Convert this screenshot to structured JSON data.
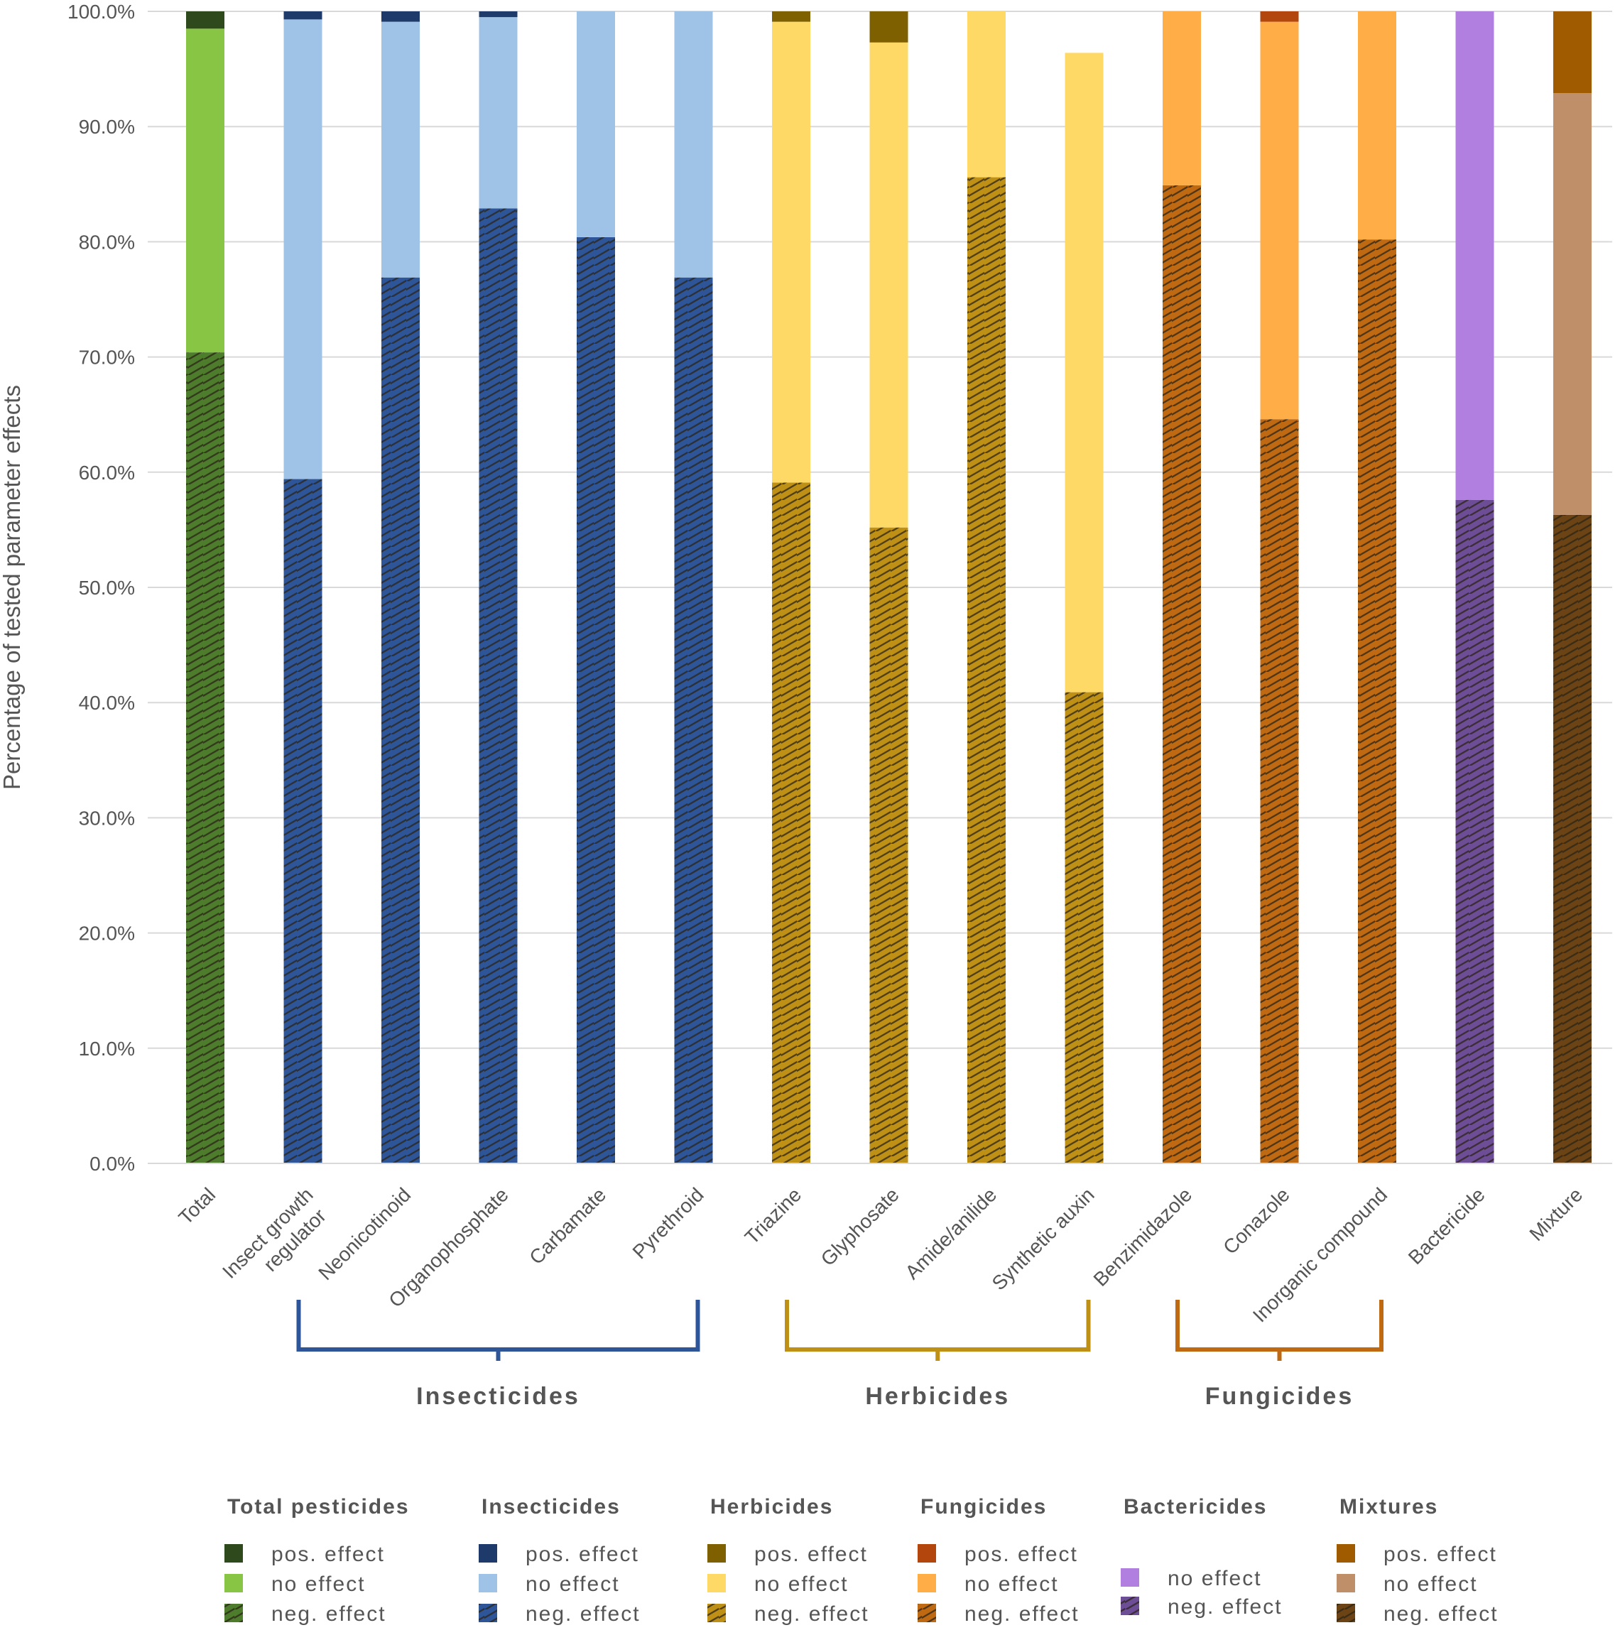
{
  "chart_data": {
    "type": "stacked-bar",
    "ylabel": "Percentage of tested parameter effects",
    "ylim": [
      0,
      100
    ],
    "yticks": [
      "0.0%",
      "10.0%",
      "20.0%",
      "30.0%",
      "40.0%",
      "50.0%",
      "60.0%",
      "70.0%",
      "80.0%",
      "90.0%",
      "100.0%"
    ],
    "grid": true,
    "stack_order": [
      "neg. effect",
      "no effect",
      "pos. effect"
    ],
    "bars": [
      {
        "category": "Total",
        "group": "total",
        "neg": 70.4,
        "no": 28.1,
        "pos": 1.5
      },
      {
        "category": "Insect growth regulator",
        "group": "insect",
        "neg": 59.4,
        "no": 39.9,
        "pos": 0.7
      },
      {
        "category": "Neonicotinoid",
        "group": "insect",
        "neg": 76.9,
        "no": 22.2,
        "pos": 0.9
      },
      {
        "category": "Organophosphate",
        "group": "insect",
        "neg": 82.9,
        "no": 16.6,
        "pos": 0.5
      },
      {
        "category": "Carbamate",
        "group": "insect",
        "neg": 80.4,
        "no": 19.6,
        "pos": 0
      },
      {
        "category": "Pyrethroid",
        "group": "insect",
        "neg": 76.9,
        "no": 23.1,
        "pos": 0
      },
      {
        "category": "Triazine",
        "group": "herb",
        "neg": 59.1,
        "no": 40.0,
        "pos": 0.9
      },
      {
        "category": "Glyphosate",
        "group": "herb",
        "neg": 55.2,
        "no": 42.1,
        "pos": 2.7
      },
      {
        "category": "Amide/anilide",
        "group": "herb",
        "neg": 85.6,
        "no": 14.4,
        "pos": 0
      },
      {
        "category": "Synthetic auxin",
        "group": "herb",
        "neg": 40.9,
        "no": 55.5,
        "pos": 0
      },
      {
        "category": "Benzimidazole",
        "group": "fung",
        "neg": 84.9,
        "no": 15.1,
        "pos": 0
      },
      {
        "category": "Conazole",
        "group": "fung",
        "neg": 64.6,
        "no": 34.5,
        "pos": 0.9
      },
      {
        "category": "Inorganic compound",
        "group": "fung",
        "neg": 80.2,
        "no": 19.8,
        "pos": 0
      },
      {
        "category": "Bactericide",
        "group": "bact",
        "neg": 57.6,
        "no": 42.4,
        "pos": 0
      },
      {
        "category": "Mixture",
        "group": "mix",
        "neg": 56.3,
        "no": 36.6,
        "pos": 7.1
      }
    ],
    "groups": [
      {
        "label": "Insecticides",
        "color": "#2e5597",
        "from": 1,
        "to": 5
      },
      {
        "label": "Herbicides",
        "color": "#bf9016",
        "from": 6,
        "to": 9
      },
      {
        "label": "Fungicides",
        "color": "#bf6a12",
        "from": 10,
        "to": 12
      }
    ],
    "colors": {
      "total": {
        "pos": "#2e4a1c",
        "no": "#88c545",
        "neg": "#4d7c2c"
      },
      "insect": {
        "pos": "#1e3a6b",
        "no": "#9fc3e6",
        "neg": "#2e5597"
      },
      "herb": {
        "pos": "#7f6000",
        "no": "#ffd966",
        "neg": "#bf9016"
      },
      "fung": {
        "pos": "#b2460c",
        "no": "#ffad47",
        "neg": "#bf6a12"
      },
      "bact": {
        "pos": "#5a3d86",
        "no": "#b07fe0",
        "neg": "#6e4d97"
      },
      "mix": {
        "pos": "#a05a00",
        "no": "#bf8f6a",
        "neg": "#6b4314"
      }
    },
    "legend": [
      {
        "title": "Total pesticides",
        "key": "total",
        "items": [
          {
            "k": "pos",
            "label": "pos. effect"
          },
          {
            "k": "no",
            "label": "no effect"
          },
          {
            "k": "neg",
            "label": "neg. effect"
          }
        ]
      },
      {
        "title": "Insecticides",
        "key": "insect",
        "items": [
          {
            "k": "pos",
            "label": "pos. effect"
          },
          {
            "k": "no",
            "label": "no effect"
          },
          {
            "k": "neg",
            "label": "neg. effect"
          }
        ]
      },
      {
        "title": "Herbicides",
        "key": "herb",
        "items": [
          {
            "k": "pos",
            "label": "pos. effect"
          },
          {
            "k": "no",
            "label": "no effect"
          },
          {
            "k": "neg",
            "label": "neg. effect"
          }
        ]
      },
      {
        "title": "Fungicides",
        "key": "fung",
        "items": [
          {
            "k": "pos",
            "label": "pos. effect"
          },
          {
            "k": "no",
            "label": "no effect"
          },
          {
            "k": "neg",
            "label": "neg. effect"
          }
        ]
      },
      {
        "title": "Bactericides",
        "key": "bact",
        "items": [
          {
            "k": "no",
            "label": "no effect"
          },
          {
            "k": "neg",
            "label": "neg. effect"
          }
        ]
      },
      {
        "title": "Mixtures",
        "key": "mix",
        "items": [
          {
            "k": "pos",
            "label": "pos. effect"
          },
          {
            "k": "no",
            "label": "no effect"
          },
          {
            "k": "neg",
            "label": "neg. effect"
          }
        ]
      }
    ]
  }
}
